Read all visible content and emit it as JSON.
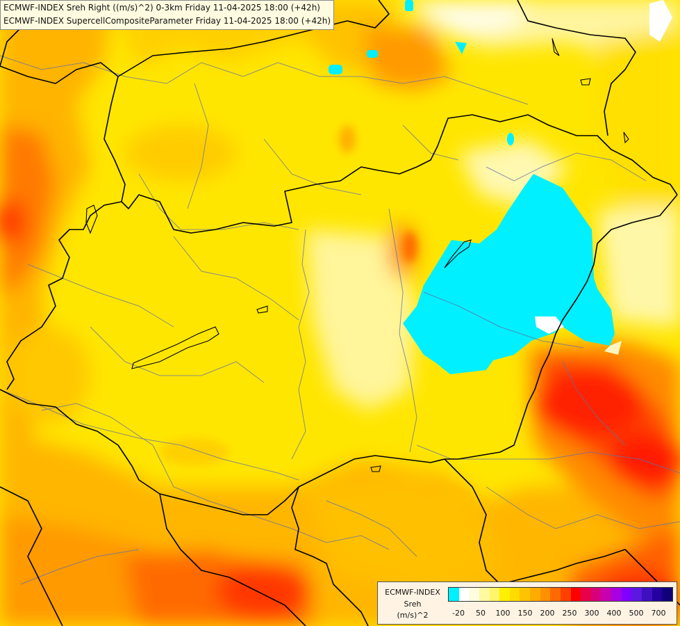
{
  "titles": [
    "ECMWF-INDEX Sreh Right ((m/s)^2) 0-3km Friday 11-04-2025 18:00 (+42h)",
    "ECMWF-INDEX SupercellCompositeParameter Friday 11-04-2025 18:00 (+42h)"
  ],
  "legend": {
    "line1": "ECMWF-INDEX",
    "line2": "Sreh",
    "line3": "(m/s)^2",
    "colors": [
      "#00f0ff",
      "#ffffff",
      "#fffde0",
      "#fffaa0",
      "#fff56a",
      "#fff000",
      "#ffdc00",
      "#ffc400",
      "#ffab00",
      "#ff9000",
      "#ff6a00",
      "#ff4000",
      "#ff0000",
      "#e8004a",
      "#d8007a",
      "#c800b0",
      "#a800e0",
      "#8000ff",
      "#5c18e0",
      "#3e10c0",
      "#2400a0",
      "#10007a"
    ],
    "ticks": [
      "-20",
      "50",
      "100",
      "150",
      "200",
      "250",
      "300",
      "400",
      "500",
      "700"
    ]
  }
}
